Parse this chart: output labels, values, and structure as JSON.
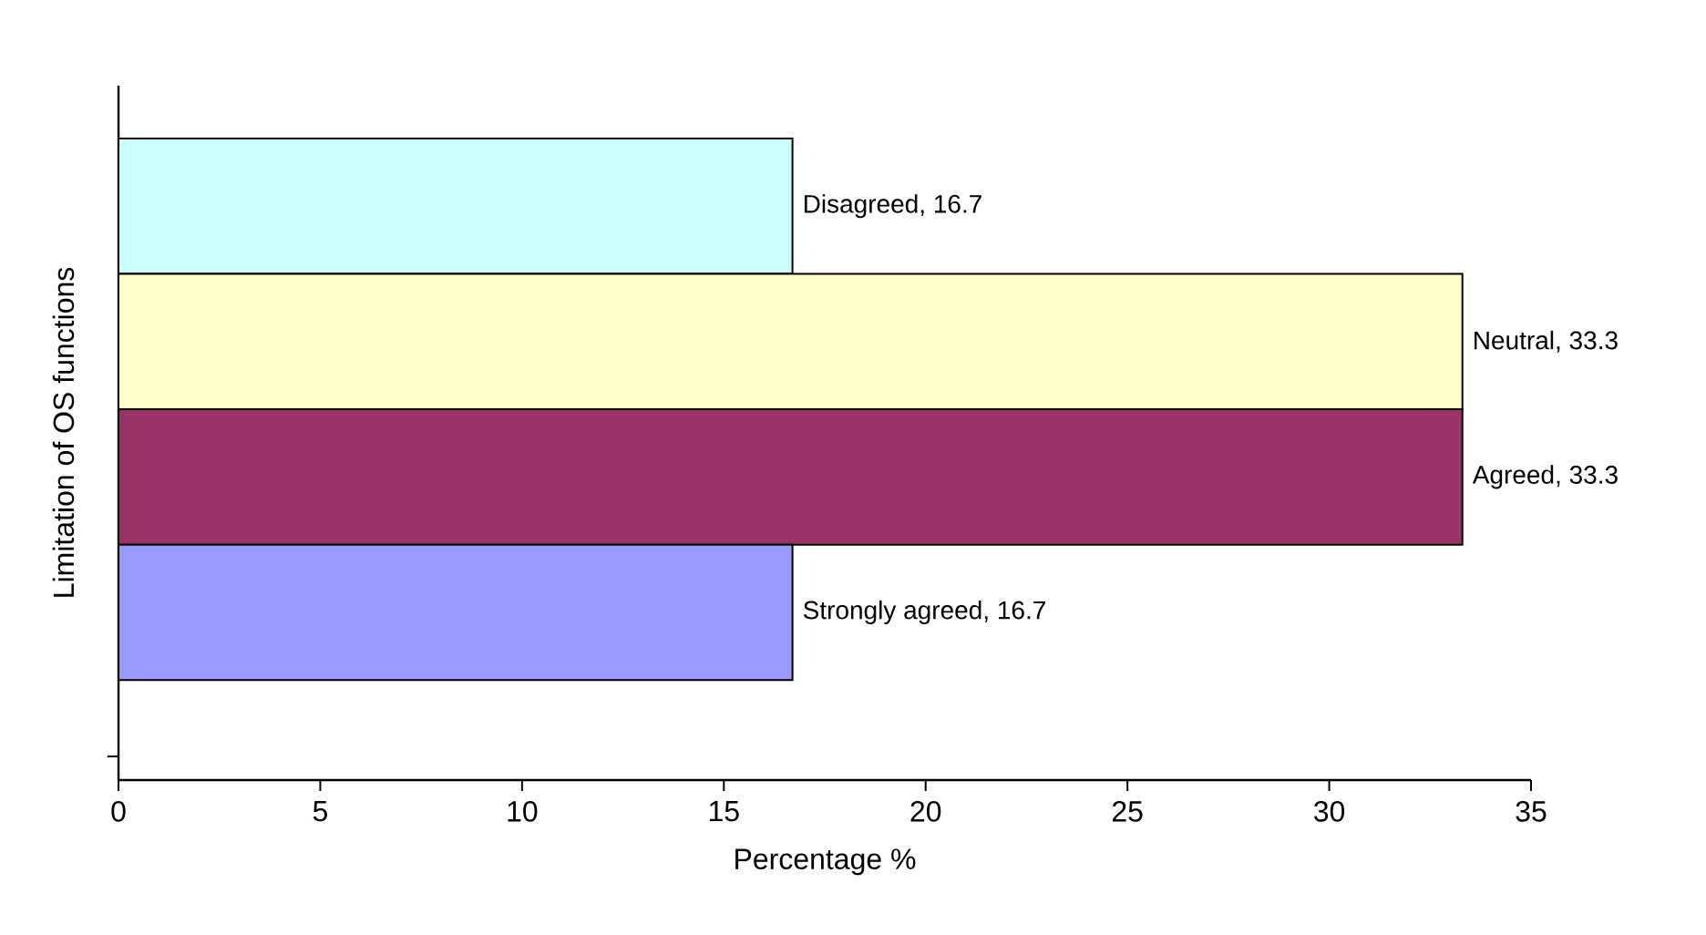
{
  "chart_data": {
    "type": "bar",
    "orientation": "horizontal",
    "ylabel": "Limitation of OS functions",
    "xlabel": "Percentage %",
    "categories": [
      null
    ],
    "series": [
      {
        "color": "#ccffff",
        "values": [
          16.7
        ],
        "value_labels": [
          "Disagreed, 16.7"
        ]
      },
      {
        "color": "#ffffcc",
        "values": [
          33.3
        ],
        "value_labels": [
          "Neutral, 33.3"
        ]
      },
      {
        "color": "#993366",
        "values": [
          33.3
        ],
        "value_labels": [
          "Agreed, 33.3"
        ]
      },
      {
        "color": "#9999ff",
        "values": [
          16.7
        ],
        "value_labels": [
          "Strongly agreed, 16.7"
        ]
      }
    ],
    "xlim": [
      0,
      35
    ],
    "xticks": [
      0,
      5,
      10,
      15,
      20,
      25,
      30,
      35
    ],
    "grid": false
  }
}
